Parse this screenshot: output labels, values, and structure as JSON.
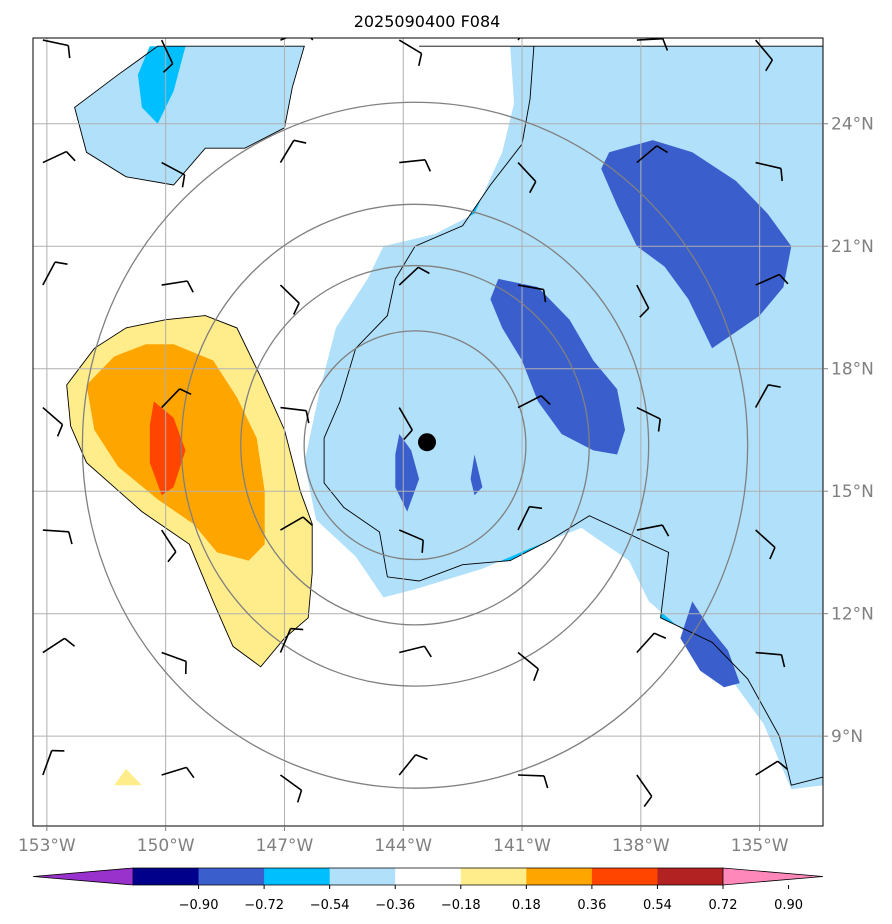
{
  "chart_data": {
    "type": "heatmap",
    "title": "2025090400 F084",
    "x_tick_labels": [
      "153°W",
      "150°W",
      "147°W",
      "144°W",
      "141°W",
      "138°W",
      "135°W"
    ],
    "x_ticks": [
      -153,
      -150,
      -147,
      -144,
      -141,
      -138,
      -135
    ],
    "y_tick_labels": [
      "9°N",
      "12°N",
      "15°N",
      "18°N",
      "21°N",
      "24°N"
    ],
    "y_ticks": [
      9,
      12,
      15,
      18,
      21,
      24
    ],
    "xlim": [
      -153.35,
      -133.4
    ],
    "ylim": [
      6.8,
      26.1
    ],
    "grid": true,
    "storm_center": {
      "lon": -143.4,
      "lat": 16.2
    },
    "range_rings_deg": [
      2.8,
      4.4,
      5.9,
      8.4
    ],
    "colorbar": {
      "tick_labels": [
        "−0.90",
        "−0.72",
        "−0.54",
        "−0.36",
        "−0.18",
        "0.18",
        "0.36",
        "0.54",
        "0.72",
        "0.90"
      ],
      "colors": [
        "#9932cc",
        "#00008b",
        "#3a5fcd",
        "#00bfff",
        "#b0e0fa",
        "#ffffff",
        "#ffec8b",
        "#ffa500",
        "#ff4500",
        "#b22222",
        "#ff88bb"
      ]
    },
    "contour_regions": [
      {
        "level": "-0.54 to -0.36",
        "color": "#00bfff",
        "points": [
          [
            -143.6,
            25.9
          ],
          [
            -140.7,
            25.9
          ],
          [
            -136,
            25.9
          ],
          [
            -133.4,
            25.9
          ],
          [
            -133.4,
            8
          ],
          [
            -134.2,
            7.8
          ],
          [
            -134.5,
            9
          ],
          [
            -135.3,
            10.4
          ],
          [
            -136.2,
            11.3
          ],
          [
            -137.5,
            11.9
          ],
          [
            -137.3,
            13.5
          ],
          [
            -139.3,
            14.4
          ],
          [
            -140.3,
            13.8
          ],
          [
            -141.3,
            13.3
          ],
          [
            -142.5,
            13.2
          ],
          [
            -143.6,
            12.8
          ],
          [
            -144.4,
            12.9
          ],
          [
            -144.6,
            14
          ],
          [
            -145.5,
            14.6
          ],
          [
            -146,
            15.2
          ],
          [
            -146,
            16.3
          ],
          [
            -145.6,
            17.2
          ],
          [
            -145.2,
            18.5
          ],
          [
            -144.4,
            19.3
          ],
          [
            -144.2,
            20.2
          ],
          [
            -143.7,
            21
          ],
          [
            -142.5,
            21.5
          ],
          [
            -141.8,
            22.5
          ],
          [
            -141,
            23.5
          ],
          [
            -140.8,
            24.6
          ],
          [
            -140.7,
            25.9
          ]
        ]
      },
      {
        "level": "-0.36 to -0.18",
        "color": "#b0e0fa",
        "points": [
          [
            -141.3,
            25.9
          ],
          [
            -133.4,
            25.9
          ],
          [
            -133.4,
            7.8
          ],
          [
            -134.2,
            7.7
          ],
          [
            -134.9,
            9.3
          ],
          [
            -135.8,
            10.5
          ],
          [
            -136.6,
            11.3
          ],
          [
            -137.8,
            12.3
          ],
          [
            -138.3,
            13.3
          ],
          [
            -139.5,
            14.1
          ],
          [
            -140.8,
            13.6
          ],
          [
            -142,
            13.1
          ],
          [
            -143.7,
            12.6
          ],
          [
            -144.5,
            12.4
          ],
          [
            -145.2,
            13.4
          ],
          [
            -146.2,
            14.3
          ],
          [
            -146.5,
            15.7
          ],
          [
            -146.1,
            17.5
          ],
          [
            -145.7,
            19
          ],
          [
            -144.9,
            20.2
          ],
          [
            -144.5,
            21
          ],
          [
            -143.2,
            21.3
          ],
          [
            -142.2,
            21.8
          ],
          [
            -141.5,
            23.3
          ],
          [
            -141.2,
            24.5
          ]
        ]
      },
      {
        "level": "-0.72 to -0.54",
        "color": "#3a5fcd",
        "points": [
          [
            -138.8,
            23.3
          ],
          [
            -137.7,
            23.6
          ],
          [
            -136.7,
            23.3
          ],
          [
            -135.6,
            22.6
          ],
          [
            -134.8,
            21.8
          ],
          [
            -134.2,
            21
          ],
          [
            -134.4,
            20
          ],
          [
            -135,
            19.3
          ],
          [
            -135.6,
            18.9
          ],
          [
            -136.2,
            18.5
          ],
          [
            -136.8,
            19.7
          ],
          [
            -137.4,
            20.5
          ],
          [
            -138.1,
            21
          ],
          [
            -138.6,
            22
          ],
          [
            -139,
            22.9
          ]
        ]
      },
      {
        "level": "-0.72 to -0.54",
        "color": "#3a5fcd",
        "points": [
          [
            -141.6,
            20.2
          ],
          [
            -140.6,
            20
          ],
          [
            -139.8,
            19.2
          ],
          [
            -139.2,
            18.2
          ],
          [
            -138.6,
            17.5
          ],
          [
            -138.4,
            16.5
          ],
          [
            -138.6,
            15.9
          ],
          [
            -139.2,
            16
          ],
          [
            -140,
            16.4
          ],
          [
            -140.6,
            17.2
          ],
          [
            -141,
            18.2
          ],
          [
            -141.5,
            19
          ],
          [
            -141.8,
            19.7
          ]
        ]
      },
      {
        "level": "-0.72 to -0.54",
        "color": "#3a5fcd",
        "points": [
          [
            -144.1,
            16.4
          ],
          [
            -143.8,
            16
          ],
          [
            -143.6,
            15.3
          ],
          [
            -143.9,
            14.5
          ],
          [
            -144.2,
            15.1
          ],
          [
            -144.2,
            15.9
          ]
        ]
      },
      {
        "level": "-0.72 to -0.54",
        "color": "#3a5fcd",
        "points": [
          [
            -142.2,
            15.9
          ],
          [
            -142,
            15.1
          ],
          [
            -142.2,
            14.9
          ],
          [
            -142.3,
            15.3
          ]
        ]
      },
      {
        "level": "-0.72 to -0.54",
        "color": "#3a5fcd",
        "points": [
          [
            -136.7,
            12.3
          ],
          [
            -136.3,
            11.7
          ],
          [
            -135.8,
            11.1
          ],
          [
            -135.5,
            10.3
          ],
          [
            -135.9,
            10.2
          ],
          [
            -136.5,
            10.6
          ],
          [
            -137,
            11.4
          ]
        ]
      },
      {
        "level": "-0.36 to -0.18",
        "color": "#b0e0fa",
        "points": [
          [
            -141.1,
            16.8
          ],
          [
            -140.9,
            16.3
          ],
          [
            -140.8,
            15.5
          ],
          [
            -141,
            14.9
          ],
          [
            -141.2,
            15.4
          ],
          [
            -141.3,
            16.3
          ]
        ]
      },
      {
        "level": "-0.36 to -0.18",
        "color": "#b0e0fa",
        "points": [
          [
            -144.9,
            16.1
          ],
          [
            -144.8,
            15.6
          ],
          [
            -144.9,
            15.1
          ],
          [
            -145.1,
            15.6
          ]
        ]
      },
      {
        "level": "-0.36 to -0.18",
        "color": "#b0e0fa",
        "points": [
          [
            -135.2,
            16.6
          ],
          [
            -135,
            15.8
          ],
          [
            -135.2,
            14.8
          ],
          [
            -135.5,
            15.4
          ],
          [
            -135.5,
            16
          ]
        ]
      },
      {
        "level": "-0.36 to -0.18",
        "color": "#b0e0fa",
        "points": [
          [
            -137.4,
            18.3
          ],
          [
            -137.2,
            17.8
          ],
          [
            -137.5,
            17.6
          ],
          [
            -137.6,
            17.9
          ]
        ]
      },
      {
        "level": "-0.36 to -0.18",
        "color": "#b0e0fa",
        "points": [
          [
            -150.2,
            25.9
          ],
          [
            -146.5,
            25.9
          ],
          [
            -146.8,
            24.9
          ],
          [
            -147,
            23.9
          ],
          [
            -148,
            23.4
          ],
          [
            -149,
            23.4
          ],
          [
            -149.8,
            22.5
          ],
          [
            -151,
            22.7
          ],
          [
            -152,
            23.3
          ],
          [
            -152.3,
            24.4
          ],
          [
            -151.2,
            25.2
          ]
        ]
      },
      {
        "level": "-0.54 to -0.36",
        "color": "#00bfff",
        "points": [
          [
            -150.4,
            25.9
          ],
          [
            -149.5,
            25.9
          ],
          [
            -149.8,
            24.8
          ],
          [
            -150.2,
            24
          ],
          [
            -150.6,
            24.4
          ],
          [
            -150.7,
            25.2
          ]
        ]
      },
      {
        "level": "0.18 to 0.36",
        "color": "#ffec8b",
        "points": [
          [
            -150,
            19.2
          ],
          [
            -149,
            19.3
          ],
          [
            -148.2,
            19
          ],
          [
            -147.6,
            17.8
          ],
          [
            -147,
            16.5
          ],
          [
            -146.6,
            15
          ],
          [
            -146.3,
            14.2
          ],
          [
            -146.3,
            13
          ],
          [
            -146.4,
            11.9
          ],
          [
            -147,
            11.4
          ],
          [
            -147.6,
            10.7
          ],
          [
            -148.3,
            11.2
          ],
          [
            -148.8,
            12.3
          ],
          [
            -149.4,
            13.7
          ],
          [
            -150.6,
            14.5
          ],
          [
            -152,
            15.7
          ],
          [
            -152.4,
            16.6
          ],
          [
            -152.5,
            17.6
          ],
          [
            -151.8,
            18.5
          ],
          [
            -151,
            19
          ]
        ]
      },
      {
        "level": "0.36 to 0.54",
        "color": "#ffa500",
        "points": [
          [
            -150.5,
            18.6
          ],
          [
            -149.8,
            18.6
          ],
          [
            -148.8,
            18.2
          ],
          [
            -148.2,
            17.3
          ],
          [
            -147.7,
            16.3
          ],
          [
            -147.5,
            15
          ],
          [
            -147.5,
            13.7
          ],
          [
            -147.9,
            13.3
          ],
          [
            -148.7,
            13.5
          ],
          [
            -149.3,
            14.2
          ],
          [
            -150.2,
            14.8
          ],
          [
            -151.2,
            15.6
          ],
          [
            -151.8,
            16.5
          ],
          [
            -152,
            17.6
          ],
          [
            -151.3,
            18.3
          ]
        ]
      },
      {
        "level": "0.54 to 0.72",
        "color": "#ff4500",
        "points": [
          [
            -150.3,
            17.2
          ],
          [
            -149.8,
            16.8
          ],
          [
            -149.5,
            16
          ],
          [
            -149.8,
            15.1
          ],
          [
            -150.1,
            14.9
          ],
          [
            -150.4,
            15.7
          ],
          [
            -150.4,
            16.6
          ]
        ]
      },
      {
        "level": "0.18 to 0.36",
        "color": "#ffec8b",
        "points": [
          [
            -151.3,
            7.8
          ],
          [
            -150.6,
            7.8
          ],
          [
            -151,
            8.2
          ]
        ]
      }
    ],
    "wind_barb_columns_lon": [
      -153,
      -150,
      -147,
      -144,
      -141,
      -138,
      -135
    ],
    "wind_barb_rows_lat": [
      8,
      11,
      14,
      17,
      20,
      23,
      26
    ]
  }
}
